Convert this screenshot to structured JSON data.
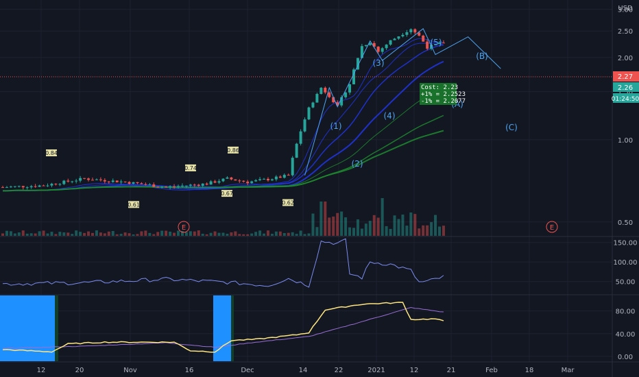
{
  "currency": "USD",
  "colors": {
    "background": "#131722",
    "grid": "#1e2230",
    "up": "#26a69a",
    "down": "#ef5350",
    "wave": "#4ea3f0",
    "ma_blue": "#2136e6",
    "ma_green": "#1e8a2e",
    "rsi_line": "#7b8cf0",
    "osc_line": "#ffe680",
    "osc_signal": "#9a6fd6",
    "highlight": "#1e90ff"
  },
  "price_badges": {
    "last": "2.27",
    "bid": "2.26",
    "countdown": "01:24:50"
  },
  "earnings_marker": "E",
  "order_tooltip": {
    "line1": "Cost: 2.23",
    "line2": "+1% = 2.2523",
    "line3": "-1% = 2.2077"
  },
  "chart_data": [
    {
      "type": "line",
      "panel": "price",
      "y_scale": "log",
      "ylim": [
        0.45,
        3.1
      ],
      "y_ticks": [
        {
          "value": 3.0,
          "label": "3.00"
        },
        {
          "value": 2.5,
          "label": "2.50"
        },
        {
          "value": 2.0,
          "label": "2.00"
        },
        {
          "value": 1.5,
          "label": "1.50"
        },
        {
          "value": 1.0,
          "label": "1.00"
        },
        {
          "value": 0.5,
          "label": "0.50"
        }
      ],
      "x_ticks": [
        "12",
        "20",
        "Nov",
        "16",
        "Dec",
        "14",
        "22",
        "2021",
        "12",
        "21",
        "Feb",
        "18",
        "Mar"
      ],
      "series": [
        {
          "values": [
            [
              0,
              0.67
            ],
            [
              10,
              0.68
            ],
            [
              20,
              0.72
            ],
            [
              30,
              0.7
            ],
            [
              40,
              0.67
            ],
            [
              50,
              0.69
            ],
            [
              55,
              0.72
            ],
            [
              60,
              0.7
            ],
            [
              66,
              0.72
            ],
            [
              70,
              0.74
            ],
            [
              75,
              1.3
            ],
            [
              78,
              1.55
            ],
            [
              80,
              1.45
            ],
            [
              82,
              1.32
            ],
            [
              85,
              1.6
            ],
            [
              88,
              2.2
            ],
            [
              90,
              2.28
            ],
            [
              92,
              2.1
            ],
            [
              95,
              2.3
            ],
            [
              98,
              2.45
            ],
            [
              100,
              2.55
            ],
            [
              102,
              2.4
            ],
            [
              104,
              2.18
            ],
            [
              106,
              2.22
            ],
            [
              108,
              2.27
            ]
          ]
        }
      ],
      "point_labels": [
        {
          "label": "0.84",
          "value": 0.84
        },
        {
          "label": "0.61",
          "value": 0.61
        },
        {
          "label": "0.74",
          "value": 0.74
        },
        {
          "label": "0.86",
          "value": 0.86
        },
        {
          "label": "0.67",
          "value": 0.67
        },
        {
          "label": "0.62",
          "value": 0.62
        }
      ],
      "wave_labels": [
        "(1)",
        "(2)",
        "(3)",
        "(4)",
        "(5)",
        "(A)",
        "(B)",
        "(C)"
      ]
    },
    {
      "type": "line",
      "panel": "rsi",
      "ylim": [
        25,
        160
      ],
      "y_ticks": [
        {
          "value": 150,
          "label": "150.00"
        },
        {
          "value": 100,
          "label": "100.00"
        },
        {
          "value": 50,
          "label": "50.00"
        }
      ]
    },
    {
      "type": "line",
      "panel": "oscillator",
      "ylim": [
        -5,
        105
      ],
      "y_ticks": [
        {
          "value": 80,
          "label": "80.00"
        },
        {
          "value": 40,
          "label": "40.00"
        },
        {
          "value": 0,
          "label": "0.00"
        }
      ]
    }
  ]
}
